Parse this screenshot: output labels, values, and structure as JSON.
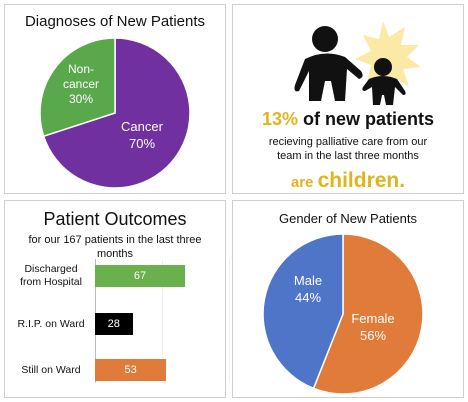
{
  "diagnoses": {
    "title": "Diagnoses of New Patients",
    "chart_data": {
      "type": "pie",
      "title": "Diagnoses of New Patients",
      "slices": [
        {
          "name": "Cancer",
          "value": 70,
          "color": "#7030a0"
        },
        {
          "name": "Non-cancer",
          "value": 30,
          "color": "#59a84b"
        }
      ]
    },
    "labels": {
      "non_cancer_1": "Non-",
      "non_cancer_2": "cancer",
      "non_cancer_pct": "30%",
      "cancer": "Cancer",
      "cancer_pct": "70%"
    }
  },
  "children": {
    "highlight": "13% of new patients",
    "highlight_num": "13%",
    "highlight_rest": " of new patients",
    "line1": "recieving palliative care from our",
    "line2": "team in the last three months",
    "end_1": "are ",
    "end_2": "children.",
    "icon": "adult-child-silhouette",
    "accent": "#e0b51c",
    "burst_color": "#fbe9a6"
  },
  "outcomes": {
    "title": "Patient Outcomes",
    "subtitle": "for our 167 patients in the last three months",
    "chart_data": {
      "type": "bar",
      "orientation": "horizontal",
      "title": "Patient Outcomes",
      "categories": [
        "Discharged from Hospital",
        "R.I.P. on Ward",
        "Still on Ward"
      ],
      "values": [
        67,
        28,
        53
      ],
      "colors": [
        "#6ab04c",
        "#000000",
        "#e07b39"
      ],
      "xlim": [
        0,
        100
      ]
    },
    "label_lines": [
      [
        "Discharged",
        "from Hospital"
      ],
      [
        "R.I.P. on Ward"
      ],
      [
        "Still on Ward"
      ]
    ]
  },
  "gender": {
    "title": "Gender of New Patients",
    "chart_data": {
      "type": "pie",
      "title": "Gender of New Patients",
      "slices": [
        {
          "name": "Female",
          "value": 56,
          "color": "#e07b39"
        },
        {
          "name": "Male",
          "value": 44,
          "color": "#4f75c8"
        }
      ]
    },
    "labels": {
      "male": "Male",
      "male_pct": "44%",
      "female": "Female",
      "female_pct": "56%"
    }
  }
}
